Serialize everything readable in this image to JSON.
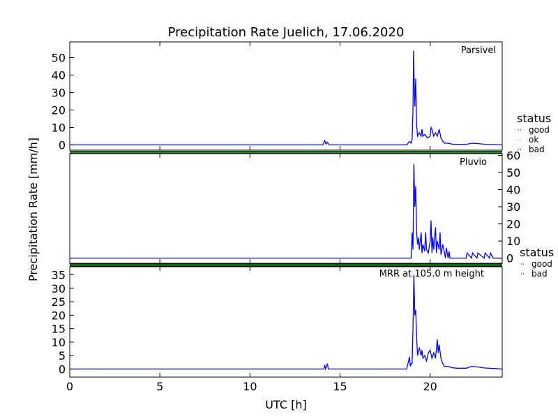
{
  "title": "Precipitation Rate Juelich, 17.06.2020",
  "xlabel": "UTC [h]",
  "ylabel": "Precipitation Rate [mm/h]",
  "colors": {
    "line": "#0000ff",
    "good": "#00aa00",
    "ok": "#ff9900",
    "bad": "#cc0000"
  },
  "legends": [
    {
      "title": "status",
      "entries": [
        "good",
        "ok",
        "bad"
      ]
    },
    {
      "title": "status",
      "entries": [
        "good",
        "bad"
      ]
    }
  ],
  "chart_data": [
    {
      "type": "line",
      "name": "Parsivel",
      "xlim": [
        0,
        24
      ],
      "ylim": [
        -3,
        59
      ],
      "yticks": [
        0,
        10,
        20,
        30,
        40,
        50
      ],
      "yaxis_side": "left",
      "status_bar": "good",
      "x": [
        0,
        14.05,
        14.15,
        14.22,
        14.3,
        14.4,
        18.7,
        18.85,
        18.95,
        19.0,
        19.05,
        19.08,
        19.12,
        19.15,
        19.2,
        19.25,
        19.3,
        19.4,
        19.5,
        19.55,
        19.6,
        19.7,
        19.85,
        20.0,
        20.05,
        20.1,
        20.2,
        20.3,
        20.4,
        20.5,
        20.6,
        20.7,
        20.8,
        21.0,
        21.2,
        21.5,
        22.0,
        22.3,
        22.6,
        23.0,
        24
      ],
      "y": [
        0,
        0,
        2.5,
        0.5,
        1.5,
        0,
        0,
        2,
        1,
        3,
        20,
        54,
        35,
        22,
        38,
        12,
        5,
        7,
        5,
        9,
        5,
        6,
        4,
        5,
        10,
        9,
        5,
        7,
        5,
        9,
        4,
        2,
        1,
        1,
        0.5,
        0.3,
        0.3,
        1,
        0.8,
        0.4,
        0
      ]
    },
    {
      "type": "line",
      "name": "Pluvio",
      "xlim": [
        0,
        24
      ],
      "ylim": [
        -3,
        61
      ],
      "yticks": [
        0,
        10,
        20,
        30,
        40,
        50,
        60
      ],
      "yaxis_side": "right",
      "status_bar": "good",
      "x": [
        0,
        18.95,
        19.0,
        19.05,
        19.1,
        19.15,
        19.2,
        19.25,
        19.3,
        19.35,
        19.4,
        19.5,
        19.55,
        19.6,
        19.7,
        19.75,
        19.8,
        19.9,
        20.0,
        20.05,
        20.1,
        20.15,
        20.2,
        20.3,
        20.35,
        20.4,
        20.5,
        20.55,
        20.6,
        20.7,
        20.8,
        20.85,
        20.9,
        21.0,
        21.05,
        21.1,
        21.5,
        22.0,
        22.05,
        22.3,
        22.35,
        22.6,
        22.65,
        23.0,
        23.05,
        23.3,
        23.35,
        23.5,
        24
      ],
      "y": [
        0,
        0,
        15,
        5,
        55,
        30,
        42,
        15,
        8,
        12,
        5,
        15,
        3,
        8,
        4,
        15,
        5,
        3,
        10,
        22,
        3,
        12,
        5,
        18,
        3,
        10,
        5,
        15,
        2,
        8,
        3,
        0,
        6,
        0,
        4,
        0,
        0,
        0,
        3,
        0,
        3,
        0,
        3,
        0,
        3,
        0,
        3,
        0,
        0
      ]
    },
    {
      "type": "line",
      "name": "MRR at 105.0 m height",
      "xlim": [
        0,
        24
      ],
      "xticks": [
        0,
        5,
        10,
        15,
        20
      ],
      "ylim": [
        -3,
        38
      ],
      "yticks": [
        0,
        5,
        10,
        15,
        20,
        25,
        30,
        35
      ],
      "yaxis_side": "left",
      "status_bar": "good",
      "x": [
        0,
        14.1,
        14.15,
        14.2,
        14.3,
        14.35,
        14.4,
        18.7,
        18.8,
        18.85,
        18.9,
        18.95,
        19.0,
        19.05,
        19.1,
        19.15,
        19.2,
        19.25,
        19.3,
        19.4,
        19.5,
        19.55,
        19.6,
        19.7,
        19.8,
        19.9,
        20.0,
        20.1,
        20.2,
        20.3,
        20.4,
        20.45,
        20.5,
        20.6,
        20.7,
        20.8,
        21.0,
        21.2,
        21.5,
        22.0,
        22.3,
        22.6,
        23.0,
        23.5,
        24
      ],
      "y": [
        0,
        0,
        1.5,
        0,
        2,
        0,
        0,
        0,
        3,
        4.5,
        1,
        2,
        2,
        15,
        35,
        20,
        22,
        12,
        5,
        8,
        5,
        7,
        4,
        5,
        3,
        6,
        7,
        4,
        6,
        4,
        11,
        6,
        9,
        4,
        2,
        1,
        1,
        0.5,
        0.3,
        0.3,
        1,
        0.8,
        0.4,
        0.2,
        0
      ]
    }
  ]
}
